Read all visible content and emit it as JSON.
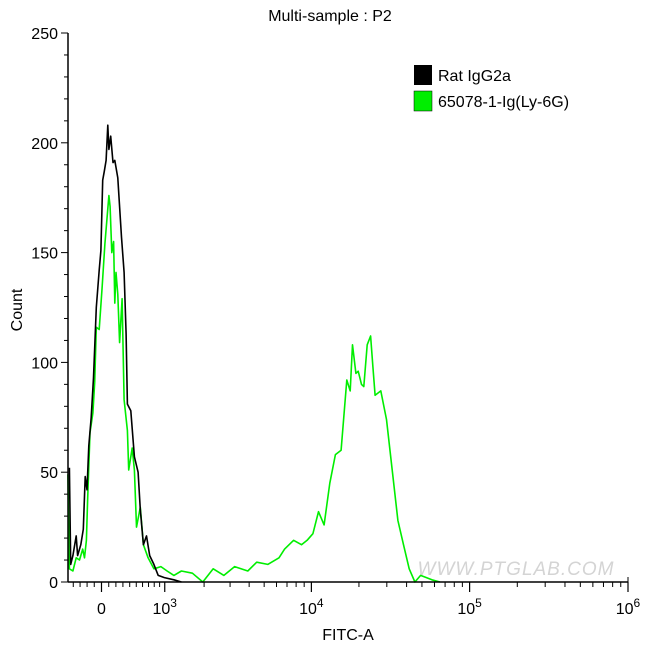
{
  "chart_data": {
    "type": "line",
    "title": "Multi-sample : P2",
    "xlabel": "FITC-A",
    "ylabel": "Count",
    "x_scale": "biexponential",
    "xlim": [
      -480,
      1000000
    ],
    "ylim": [
      0,
      250
    ],
    "x_tick_labels": [
      {
        "value": 0,
        "base": "0",
        "exp": ""
      },
      {
        "value": 1000,
        "base": "10",
        "exp": "3"
      },
      {
        "value": 10000,
        "base": "10",
        "exp": "4"
      },
      {
        "value": 100000,
        "base": "10",
        "exp": "5"
      },
      {
        "value": 1000000,
        "base": "10",
        "exp": "6"
      }
    ],
    "y_ticks": [
      0,
      50,
      100,
      150,
      200,
      250
    ],
    "y_tick_labels": [
      "0",
      "50",
      "100",
      "150",
      "200",
      "250"
    ],
    "grid": false,
    "legend_position": "top-right",
    "watermark": "WWW.PTGLAB.COM",
    "series": [
      {
        "name": "Rat IgG2a",
        "color": "#000000",
        "x": [
          -459,
          -438,
          -406,
          -356,
          -336,
          -289,
          -253,
          -227,
          -201,
          -176,
          -143,
          -110,
          -71,
          -31,
          -8,
          16,
          39,
          63,
          87,
          102,
          127,
          159,
          184,
          227,
          280,
          317,
          346,
          366,
          417,
          471,
          528,
          564,
          614,
          666,
          721,
          794,
          874,
          994,
          1193,
          1367
        ],
        "y": [
          52,
          8,
          12,
          21,
          12,
          17,
          24,
          48,
          42,
          62,
          75,
          93,
          125,
          142,
          151,
          183,
          187,
          192,
          208,
          197,
          203,
          191,
          192,
          184,
          157,
          141,
          113,
          81,
          78,
          57,
          50,
          33,
          17,
          21,
          12,
          8,
          3,
          2,
          1,
          0
        ]
      },
      {
        "name": "65078-1-Ig(Ly-6G)",
        "color": "#00ee00",
        "x": [
          -481,
          -459,
          -406,
          -356,
          -308,
          -262,
          -236,
          -210,
          -193,
          -159,
          -119,
          -94,
          -71,
          -31,
          8,
          47,
          102,
          119,
          143,
          168,
          184,
          201,
          227,
          253,
          289,
          317,
          366,
          385,
          438,
          471,
          504,
          564,
          614,
          693,
          794,
          925,
          1047,
          1193,
          1367,
          1650,
          1960,
          2310,
          2730,
          3215,
          3920,
          4475,
          5280,
          6225,
          6760,
          7715,
          8660,
          9400,
          10220,
          11090,
          12040,
          13080,
          14200,
          15420,
          16750,
          17600,
          18200,
          19130,
          19770,
          20770,
          21470,
          22560,
          23700,
          24490,
          25300,
          27490,
          29860,
          32440,
          35230,
          38250,
          41550,
          45130,
          49000,
          57790,
          64900
        ],
        "y": [
          49,
          6,
          5,
          11,
          10,
          15,
          11,
          19,
          37,
          68,
          77,
          91,
          116,
          115,
          134,
          154,
          176,
          171,
          150,
          155,
          127,
          141,
          131,
          109,
          129,
          83,
          69,
          51,
          61,
          51,
          25,
          34,
          17,
          11,
          6,
          7,
          5,
          3,
          5,
          4,
          0,
          6,
          3,
          7,
          5,
          9,
          8,
          11,
          15,
          19,
          17,
          19,
          22,
          32,
          26,
          45,
          58,
          60,
          92,
          87,
          108,
          95,
          96,
          90,
          89,
          108,
          112,
          98,
          85,
          87,
          74,
          51,
          28,
          17,
          6,
          0,
          3,
          1,
          0
        ]
      }
    ]
  }
}
